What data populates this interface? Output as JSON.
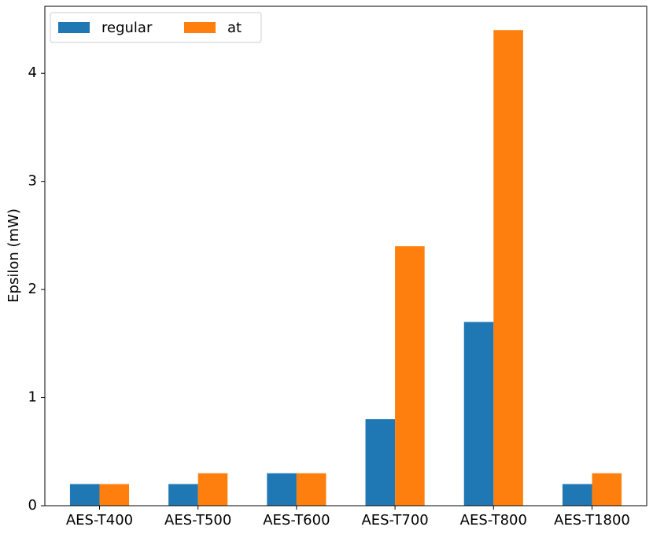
{
  "chart_data": {
    "type": "bar",
    "y_label": "Epsilon (mW)",
    "categories": [
      "AES-T400",
      "AES-T500",
      "AES-T600",
      "AES-T700",
      "AES-T800",
      "AES-T1800"
    ],
    "series": [
      {
        "name": "regular",
        "color": "#1f77b4",
        "values": [
          0.2,
          0.2,
          0.3,
          0.8,
          1.7,
          0.2
        ]
      },
      {
        "name": "at",
        "color": "#ff7f0e",
        "values": [
          0.2,
          0.3,
          0.3,
          2.4,
          4.4,
          0.3
        ]
      }
    ],
    "ylim": [
      0,
      4.62
    ],
    "yticks": [
      0,
      1,
      2,
      3,
      4
    ],
    "grid": false,
    "legend": "upper left"
  }
}
